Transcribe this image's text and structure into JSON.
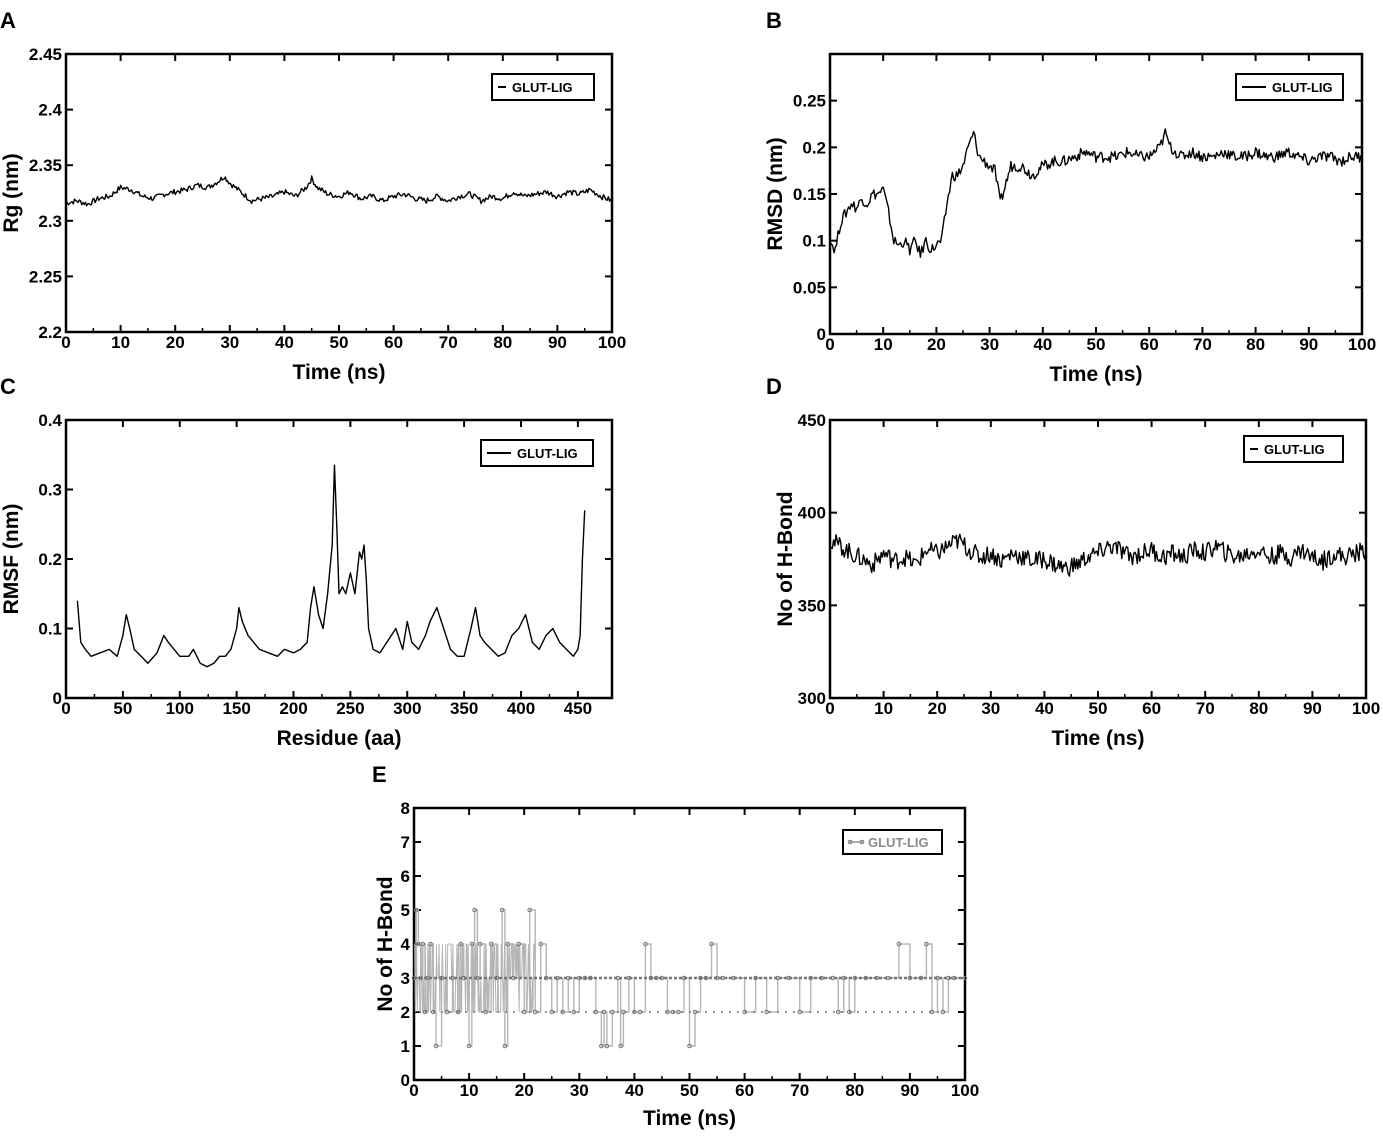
{
  "colors": {
    "line": "#000000",
    "hbond_line": "#b5b5b5",
    "hbond_marker": "#777777",
    "frame": "#000000",
    "background": "#ffffff"
  },
  "chart_data": [
    {
      "panel": "A",
      "type": "line",
      "xlabel": "Time (ns)",
      "ylabel": "Rg (nm)",
      "xlim": [
        0,
        100
      ],
      "ylim": [
        2.2,
        2.45
      ],
      "xticks": [
        0,
        10,
        20,
        30,
        40,
        50,
        60,
        70,
        80,
        90,
        100
      ],
      "yticks": [
        2.2,
        2.25,
        2.3,
        2.35,
        2.4,
        2.45
      ],
      "ytick_labels": [
        "2.2",
        "2.25",
        "2.3",
        "2.35",
        "2.4",
        "2.45"
      ],
      "legend_position": "top-right",
      "grid": false,
      "series": [
        {
          "name": "GLUT-LIG",
          "x": [
            0,
            2,
            4,
            6,
            8,
            10,
            12,
            14,
            16,
            18,
            20,
            22,
            24,
            26,
            28,
            29,
            30,
            32,
            34,
            36,
            38,
            40,
            42,
            44,
            45,
            46,
            48,
            50,
            52,
            54,
            56,
            58,
            60,
            62,
            64,
            66,
            68,
            70,
            72,
            74,
            76,
            78,
            80,
            82,
            84,
            86,
            88,
            90,
            92,
            94,
            96,
            98,
            100
          ],
          "y": [
            2.316,
            2.318,
            2.315,
            2.32,
            2.322,
            2.33,
            2.328,
            2.322,
            2.32,
            2.324,
            2.326,
            2.328,
            2.332,
            2.33,
            2.336,
            2.34,
            2.334,
            2.326,
            2.318,
            2.32,
            2.322,
            2.326,
            2.322,
            2.33,
            2.338,
            2.33,
            2.324,
            2.322,
            2.326,
            2.32,
            2.322,
            2.318,
            2.322,
            2.324,
            2.32,
            2.318,
            2.322,
            2.318,
            2.322,
            2.324,
            2.318,
            2.322,
            2.32,
            2.326,
            2.322,
            2.324,
            2.326,
            2.322,
            2.326,
            2.324,
            2.328,
            2.322,
            2.318
          ]
        }
      ]
    },
    {
      "panel": "B",
      "type": "line",
      "xlabel": "Time (ns)",
      "ylabel": "RMSD (nm)",
      "xlim": [
        0,
        100
      ],
      "ylim": [
        0,
        0.3
      ],
      "xticks": [
        0,
        10,
        20,
        30,
        40,
        50,
        60,
        70,
        80,
        90,
        100
      ],
      "yticks": [
        0,
        0.05,
        0.1,
        0.15,
        0.2,
        0.25
      ],
      "ytick_labels": [
        "0",
        "0.05",
        "0.1",
        "0.15",
        "0.2",
        "0.25"
      ],
      "legend_position": "top-right",
      "grid": false,
      "series": [
        {
          "name": "GLUT-LIG",
          "x": [
            0,
            1,
            2,
            3,
            4,
            5,
            6,
            7,
            8,
            9,
            10,
            11,
            12,
            13,
            14,
            15,
            16,
            17,
            18,
            19,
            20,
            21,
            22,
            23,
            24,
            25,
            26,
            27,
            28,
            29,
            30,
            31,
            32,
            34,
            36,
            38,
            40,
            42,
            44,
            46,
            48,
            50,
            52,
            54,
            56,
            58,
            60,
            62,
            63,
            64,
            66,
            68,
            70,
            72,
            74,
            76,
            78,
            80,
            82,
            84,
            86,
            88,
            90,
            92,
            94,
            96,
            98,
            100
          ],
          "y": [
            0.1,
            0.09,
            0.12,
            0.13,
            0.14,
            0.135,
            0.145,
            0.14,
            0.15,
            0.15,
            0.155,
            0.13,
            0.1,
            0.095,
            0.1,
            0.09,
            0.1,
            0.085,
            0.1,
            0.09,
            0.095,
            0.1,
            0.14,
            0.17,
            0.17,
            0.18,
            0.2,
            0.215,
            0.19,
            0.185,
            0.18,
            0.175,
            0.14,
            0.18,
            0.18,
            0.17,
            0.18,
            0.185,
            0.185,
            0.19,
            0.195,
            0.19,
            0.19,
            0.19,
            0.195,
            0.19,
            0.19,
            0.2,
            0.215,
            0.2,
            0.19,
            0.195,
            0.19,
            0.19,
            0.195,
            0.19,
            0.19,
            0.195,
            0.19,
            0.19,
            0.195,
            0.19,
            0.185,
            0.19,
            0.19,
            0.185,
            0.19,
            0.19
          ]
        }
      ]
    },
    {
      "panel": "C",
      "type": "line",
      "xlabel": "Residue (aa)",
      "ylabel": "RMSF (nm)",
      "xlim": [
        0,
        480
      ],
      "ylim": [
        0,
        0.4
      ],
      "xticks": [
        0,
        50,
        100,
        150,
        200,
        250,
        300,
        350,
        400,
        450
      ],
      "yticks": [
        0,
        0.1,
        0.2,
        0.3,
        0.4
      ],
      "ytick_labels": [
        "0",
        "0.1",
        "0.2",
        "0.3",
        "0.4"
      ],
      "legend_position": "top-right",
      "grid": false,
      "series": [
        {
          "name": "GLUT-LIG",
          "x": [
            10,
            13,
            17,
            22,
            30,
            38,
            45,
            50,
            53,
            56,
            60,
            66,
            72,
            80,
            86,
            90,
            95,
            100,
            108,
            112,
            118,
            124,
            130,
            135,
            140,
            145,
            150,
            152,
            155,
            160,
            165,
            170,
            178,
            186,
            192,
            200,
            206,
            212,
            215,
            218,
            222,
            226,
            230,
            234,
            236,
            238,
            240,
            243,
            246,
            250,
            254,
            258,
            260,
            262,
            264,
            266,
            270,
            276,
            282,
            290,
            296,
            300,
            304,
            310,
            316,
            320,
            326,
            332,
            338,
            344,
            350,
            356,
            360,
            364,
            368,
            374,
            380,
            386,
            392,
            398,
            404,
            410,
            416,
            422,
            428,
            434,
            440,
            446,
            450,
            452,
            454,
            456
          ],
          "y": [
            0.14,
            0.08,
            0.07,
            0.06,
            0.065,
            0.07,
            0.06,
            0.09,
            0.12,
            0.1,
            0.07,
            0.06,
            0.05,
            0.065,
            0.09,
            0.08,
            0.07,
            0.06,
            0.06,
            0.07,
            0.05,
            0.045,
            0.05,
            0.06,
            0.06,
            0.07,
            0.1,
            0.13,
            0.11,
            0.09,
            0.08,
            0.07,
            0.065,
            0.06,
            0.07,
            0.065,
            0.07,
            0.08,
            0.13,
            0.16,
            0.12,
            0.1,
            0.15,
            0.22,
            0.335,
            0.25,
            0.15,
            0.16,
            0.15,
            0.18,
            0.15,
            0.21,
            0.2,
            0.22,
            0.17,
            0.1,
            0.07,
            0.065,
            0.08,
            0.1,
            0.07,
            0.11,
            0.08,
            0.07,
            0.09,
            0.11,
            0.13,
            0.1,
            0.07,
            0.06,
            0.06,
            0.1,
            0.13,
            0.09,
            0.08,
            0.07,
            0.06,
            0.065,
            0.09,
            0.1,
            0.12,
            0.08,
            0.07,
            0.09,
            0.1,
            0.08,
            0.07,
            0.06,
            0.07,
            0.09,
            0.2,
            0.27
          ]
        }
      ]
    },
    {
      "panel": "D",
      "type": "line",
      "xlabel": "Time (ns)",
      "ylabel": "No of H-Bond",
      "xlim": [
        0,
        100
      ],
      "ylim": [
        300,
        450
      ],
      "xticks": [
        0,
        10,
        20,
        30,
        40,
        50,
        60,
        70,
        80,
        90,
        100
      ],
      "yticks": [
        300,
        350,
        400,
        450
      ],
      "ytick_labels": [
        "300",
        "350",
        "400",
        "450"
      ],
      "legend_position": "top-right",
      "grid": false,
      "series": [
        {
          "name": "GLUT-LIG",
          "x": [
            0,
            2,
            4,
            6,
            8,
            10,
            12,
            14,
            16,
            18,
            20,
            22,
            24,
            26,
            28,
            30,
            32,
            34,
            36,
            38,
            40,
            42,
            44,
            46,
            48,
            50,
            52,
            54,
            56,
            58,
            60,
            62,
            64,
            66,
            68,
            70,
            72,
            74,
            76,
            78,
            80,
            82,
            84,
            86,
            88,
            90,
            92,
            94,
            96,
            98,
            100
          ],
          "y": [
            385,
            382,
            378,
            375,
            372,
            378,
            374,
            376,
            372,
            380,
            378,
            382,
            385,
            380,
            376,
            378,
            374,
            378,
            376,
            374,
            375,
            372,
            370,
            372,
            376,
            378,
            382,
            380,
            376,
            378,
            380,
            376,
            378,
            376,
            380,
            378,
            382,
            378,
            376,
            378,
            380,
            376,
            378,
            376,
            380,
            376,
            374,
            378,
            376,
            378,
            380
          ]
        }
      ]
    },
    {
      "panel": "E",
      "type": "line",
      "xlabel": "Time (ns)",
      "ylabel": "No of H-Bond",
      "xlim": [
        0,
        100
      ],
      "ylim": [
        0,
        8
      ],
      "xticks": [
        0,
        10,
        20,
        30,
        40,
        50,
        60,
        70,
        80,
        90,
        100
      ],
      "yticks": [
        0,
        1,
        2,
        3,
        4,
        5,
        6,
        7,
        8
      ],
      "ytick_labels": [
        "0",
        "1",
        "2",
        "3",
        "4",
        "5",
        "6",
        "7",
        "8"
      ],
      "legend_position": "top-right",
      "grid": false,
      "series": [
        {
          "name": "GLUT-LIG",
          "x": [
            0,
            0.4,
            0.8,
            1.2,
            1.6,
            2,
            2.4,
            3,
            3.5,
            4,
            5,
            6,
            7,
            8,
            8.5,
            9,
            10,
            10.5,
            11,
            11.5,
            12,
            13,
            14,
            15,
            16,
            16.5,
            17,
            18,
            19,
            20,
            21,
            22,
            23,
            24,
            25,
            26,
            27,
            28,
            29,
            30,
            31,
            32,
            33,
            34,
            34.5,
            35,
            36,
            37,
            37.5,
            38,
            39,
            40,
            41,
            42,
            43,
            44,
            45,
            46,
            47,
            48,
            49,
            50,
            51,
            52,
            53,
            54,
            55,
            56,
            58,
            60,
            62,
            64,
            66,
            68,
            70,
            72,
            74,
            76,
            77,
            78,
            79,
            80,
            82,
            84,
            86,
            88,
            90,
            92,
            93,
            94,
            95,
            96,
            97,
            98,
            100
          ],
          "y": [
            3,
            5,
            4,
            3,
            4,
            2,
            3,
            4,
            2,
            1,
            3,
            2,
            3,
            2,
            4,
            3,
            1,
            4,
            5,
            3,
            4,
            2,
            4,
            3,
            5,
            1,
            4,
            3,
            4,
            2,
            5,
            2,
            4,
            3,
            2,
            3,
            2,
            3,
            2,
            3,
            3,
            3,
            2,
            1,
            2,
            1,
            2,
            3,
            1,
            2,
            3,
            2,
            2,
            4,
            3,
            3,
            3,
            2,
            2,
            2,
            3,
            1,
            2,
            3,
            3,
            4,
            3,
            3,
            3,
            2,
            3,
            2,
            3,
            3,
            2,
            3,
            3,
            3,
            2,
            3,
            2,
            3,
            3,
            3,
            3,
            4,
            3,
            3,
            4,
            2,
            3,
            2,
            3,
            3,
            3
          ]
        }
      ]
    }
  ]
}
